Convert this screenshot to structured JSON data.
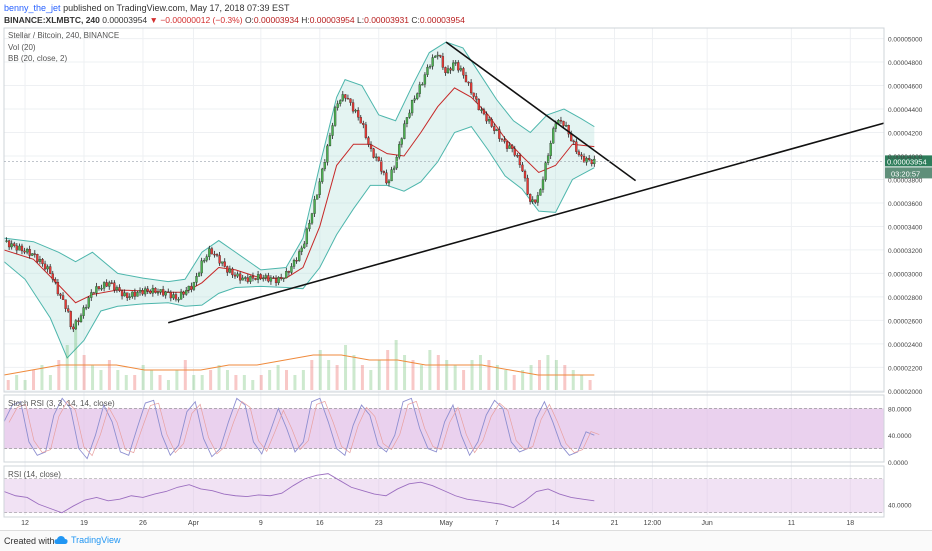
{
  "header": {
    "user": "benny_the_jet",
    "published": " published on TradingView.com, May 17, 2018 07:39 EST",
    "symbol": "BINANCE:XLMBTC, 240",
    "last": "0.00003954",
    "change": "▼ −0.00000012 (−0.3%)",
    "o_label": "O:",
    "o": "0.00003934",
    "h_label": "H:",
    "h": "0.00003954",
    "l_label": "L:",
    "l": "0.00003931",
    "c_label": "C:",
    "c": "0.00003954"
  },
  "legend": {
    "title": "Stellar / Bitcoin, 240, BINANCE",
    "vol": "Vol (20)",
    "bb": "BB (20, close, 2)",
    "stoch": "Stoch RSI (3, 3, 14, 14, close)",
    "rsi": "RSI (14, close)"
  },
  "price_tag": "0.00003954",
  "countdown": "03:20:57",
  "footer": {
    "created": "Created with",
    "brand": "TradingView"
  },
  "colors": {
    "up": "#4caf50",
    "down": "#e53935",
    "band": "#4db6ac",
    "band_fill": "#b2dfdb",
    "basis": "#c62828",
    "stoch_fill": "#e1bee7",
    "stoch_line": "#8e8fd0",
    "rsi_line": "#9c6fc0",
    "trend": "#111111",
    "price_tag": "#2e7d5b"
  },
  "chart_data": [
    {
      "type": "candlestick",
      "panel": "price",
      "title": "Stellar / Bitcoin, 240, BINANCE",
      "y_ticks": [
        "0.00002000",
        "0.00002200",
        "0.00002400",
        "0.00002600",
        "0.00002800",
        "0.00003000",
        "0.00003200",
        "0.00003400",
        "0.00003600",
        "0.00003800",
        "0.00004000",
        "0.00004200",
        "0.00004400",
        "0.00004600",
        "0.00004800",
        "0.00005000"
      ],
      "ylim": [
        1.99e-05,
        5.09e-05
      ],
      "x_ticks": [
        "12",
        "19",
        "26",
        "Apr",
        "9",
        "16",
        "23",
        "May",
        "7",
        "14",
        "21",
        "12:00",
        "Jun",
        "11",
        "18"
      ],
      "x_tick_days": [
        -19,
        -12,
        -5,
        1,
        9,
        16,
        23,
        31,
        37,
        44,
        51,
        55.5,
        62,
        72,
        79
      ],
      "xlim": [
        -21.5,
        83
      ],
      "price_path": [
        [
          -21.5,
          3.27e-05
        ],
        [
          -20,
          3.22e-05
        ],
        [
          -18,
          3.16e-05
        ],
        [
          -16,
          3.01e-05
        ],
        [
          -15,
          2.83e-05
        ],
        [
          -14,
          2.7e-05
        ],
        [
          -13.5,
          2.52e-05
        ],
        [
          -12.5,
          2.62e-05
        ],
        [
          -11,
          2.85e-05
        ],
        [
          -9,
          2.92e-05
        ],
        [
          -7,
          2.8e-05
        ],
        [
          -5,
          2.85e-05
        ],
        [
          -3.5,
          2.85e-05
        ],
        [
          -2,
          2.83e-05
        ],
        [
          -1,
          2.78e-05
        ],
        [
          0,
          2.85e-05
        ],
        [
          1,
          2.9e-05
        ],
        [
          2,
          3.09e-05
        ],
        [
          3,
          3.2e-05
        ],
        [
          4,
          3.12e-05
        ],
        [
          5,
          3.03e-05
        ],
        [
          6,
          2.98e-05
        ],
        [
          7,
          2.95e-05
        ],
        [
          9,
          2.97e-05
        ],
        [
          11,
          2.94e-05
        ],
        [
          12,
          2.99e-05
        ],
        [
          13,
          3.1e-05
        ],
        [
          14,
          3.23e-05
        ],
        [
          15,
          3.5e-05
        ],
        [
          16,
          3.78e-05
        ],
        [
          17,
          4.1e-05
        ],
        [
          18,
          4.45e-05
        ],
        [
          19,
          4.52e-05
        ],
        [
          20,
          4.4e-05
        ],
        [
          21,
          4.28e-05
        ],
        [
          22,
          4.05e-05
        ],
        [
          23,
          3.95e-05
        ],
        [
          24,
          3.76e-05
        ],
        [
          25,
          3.95e-05
        ],
        [
          26,
          4.25e-05
        ],
        [
          27,
          4.46e-05
        ],
        [
          28,
          4.6e-05
        ],
        [
          29,
          4.78e-05
        ],
        [
          30,
          4.88e-05
        ],
        [
          31,
          4.7e-05
        ],
        [
          32,
          4.8e-05
        ],
        [
          33,
          4.7e-05
        ],
        [
          34,
          4.55e-05
        ],
        [
          35,
          4.4e-05
        ],
        [
          36,
          4.3e-05
        ],
        [
          37,
          4.2e-05
        ],
        [
          38,
          4.1e-05
        ],
        [
          39,
          4.05e-05
        ],
        [
          40,
          3.9e-05
        ],
        [
          41,
          3.6e-05
        ],
        [
          42,
          3.65e-05
        ],
        [
          43,
          3.98e-05
        ],
        [
          44,
          4.3e-05
        ],
        [
          45,
          4.28e-05
        ],
        [
          46,
          4.12e-05
        ],
        [
          47,
          3.98e-05
        ],
        [
          48,
          3.96e-05
        ],
        [
          48.6,
          3.95e-05
        ]
      ],
      "bb_upper": [
        [
          -21.5,
          3.3e-05
        ],
        [
          -18,
          3.27e-05
        ],
        [
          -15,
          3.18e-05
        ],
        [
          -13,
          3.1e-05
        ],
        [
          -11,
          3.18e-05
        ],
        [
          -8,
          3e-05
        ],
        [
          -5,
          2.96e-05
        ],
        [
          -2,
          2.93e-05
        ],
        [
          0,
          2.95e-05
        ],
        [
          2,
          3.18e-05
        ],
        [
          4,
          3.28e-05
        ],
        [
          6,
          3.18e-05
        ],
        [
          9,
          3.03e-05
        ],
        [
          12,
          3.05e-05
        ],
        [
          14,
          3.3e-05
        ],
        [
          16,
          3.92e-05
        ],
        [
          18,
          4.5e-05
        ],
        [
          19,
          4.65e-05
        ],
        [
          21,
          4.6e-05
        ],
        [
          23,
          4.35e-05
        ],
        [
          25,
          4.3e-05
        ],
        [
          27,
          4.6e-05
        ],
        [
          29,
          4.88e-05
        ],
        [
          31,
          4.97e-05
        ],
        [
          33,
          4.92e-05
        ],
        [
          35,
          4.7e-05
        ],
        [
          37,
          4.48e-05
        ],
        [
          39,
          4.3e-05
        ],
        [
          41,
          4.2e-05
        ],
        [
          43,
          4.35e-05
        ],
        [
          45,
          4.4e-05
        ],
        [
          47,
          4.32e-05
        ],
        [
          48.6,
          4.25e-05
        ]
      ],
      "bb_lower": [
        [
          -21.5,
          3.1e-05
        ],
        [
          -19,
          2.95e-05
        ],
        [
          -16,
          2.62e-05
        ],
        [
          -14,
          2.28e-05
        ],
        [
          -12,
          2.43e-05
        ],
        [
          -10,
          2.68e-05
        ],
        [
          -8,
          2.72e-05
        ],
        [
          -5,
          2.74e-05
        ],
        [
          -2,
          2.75e-05
        ],
        [
          0,
          2.72e-05
        ],
        [
          2,
          2.73e-05
        ],
        [
          4,
          2.83e-05
        ],
        [
          6,
          2.88e-05
        ],
        [
          9,
          2.89e-05
        ],
        [
          12,
          2.88e-05
        ],
        [
          14,
          2.87e-05
        ],
        [
          16,
          3.05e-05
        ],
        [
          18,
          3.33e-05
        ],
        [
          20,
          3.55e-05
        ],
        [
          22,
          3.75e-05
        ],
        [
          24,
          3.75e-05
        ],
        [
          26,
          3.7e-05
        ],
        [
          28,
          3.78e-05
        ],
        [
          30,
          3.95e-05
        ],
        [
          32,
          4.2e-05
        ],
        [
          34,
          4.25e-05
        ],
        [
          36,
          4.05e-05
        ],
        [
          38,
          3.83e-05
        ],
        [
          40,
          3.72e-05
        ],
        [
          42,
          3.53e-05
        ],
        [
          44,
          3.52e-05
        ],
        [
          46,
          3.8e-05
        ],
        [
          48.6,
          3.9e-05
        ]
      ],
      "bb_basis": [
        [
          -21.5,
          3.2e-05
        ],
        [
          -18,
          3.12e-05
        ],
        [
          -15,
          2.9e-05
        ],
        [
          -13,
          2.75e-05
        ],
        [
          -11,
          2.82e-05
        ],
        [
          -8,
          2.86e-05
        ],
        [
          -5,
          2.85e-05
        ],
        [
          -2,
          2.84e-05
        ],
        [
          0,
          2.84e-05
        ],
        [
          2,
          2.92e-05
        ],
        [
          4,
          3.05e-05
        ],
        [
          6,
          3.03e-05
        ],
        [
          9,
          2.96e-05
        ],
        [
          12,
          2.96e-05
        ],
        [
          14,
          3.05e-05
        ],
        [
          16,
          3.4e-05
        ],
        [
          18,
          3.92e-05
        ],
        [
          20,
          4.1e-05
        ],
        [
          22,
          4.1e-05
        ],
        [
          24,
          4.02e-05
        ],
        [
          26,
          4e-05
        ],
        [
          28,
          4.2e-05
        ],
        [
          30,
          4.42e-05
        ],
        [
          32,
          4.58e-05
        ],
        [
          34,
          4.5e-05
        ],
        [
          36,
          4.35e-05
        ],
        [
          38,
          4.15e-05
        ],
        [
          40,
          4e-05
        ],
        [
          42,
          3.86e-05
        ],
        [
          44,
          3.92e-05
        ],
        [
          46,
          4.1e-05
        ],
        [
          48.6,
          4.08e-05
        ]
      ],
      "trendlines": [
        {
          "name": "support",
          "from": [
            -2,
            2.58e-05
          ],
          "to": [
            83,
            4.28e-05
          ]
        },
        {
          "name": "resistance",
          "from": [
            31,
            4.97e-05
          ],
          "to": [
            53.5,
            3.79e-05
          ]
        }
      ],
      "last_price": 3.954e-05
    },
    {
      "type": "bar",
      "panel": "volume",
      "title": "Vol (20)",
      "values": [
        2,
        3,
        2,
        4,
        5,
        3,
        6,
        9,
        12,
        7,
        5,
        4,
        6,
        4,
        3,
        3,
        5,
        4,
        3,
        2,
        4,
        6,
        3,
        3,
        4,
        5,
        4,
        3,
        3,
        2,
        3,
        4,
        5,
        4,
        3,
        4,
        6,
        8,
        6,
        5,
        9,
        7,
        5,
        4,
        6,
        8,
        10,
        7,
        6,
        5,
        8,
        7,
        6,
        5,
        4,
        6,
        7,
        6,
        5,
        4,
        3,
        4,
        5,
        6,
        7,
        6,
        5,
        4,
        3,
        2
      ],
      "ma": [
        3,
        4,
        5,
        5,
        5,
        4,
        4,
        4,
        5,
        5,
        6,
        7,
        7,
        6,
        6,
        5,
        5,
        5,
        4,
        3,
        3,
        3
      ]
    },
    {
      "type": "line",
      "panel": "stoch_rsi",
      "title": "Stoch RSI (3, 3, 14, 14, close)",
      "y_ticks": [
        "0.0000",
        "40.0000",
        "80.0000"
      ],
      "ylim": [
        0,
        100
      ],
      "bands": [
        20,
        80
      ],
      "values": [
        60,
        85,
        90,
        30,
        10,
        15,
        70,
        95,
        80,
        20,
        5,
        40,
        85,
        60,
        15,
        10,
        50,
        88,
        92,
        40,
        10,
        25,
        75,
        90,
        35,
        8,
        20,
        60,
        95,
        85,
        30,
        12,
        45,
        80,
        50,
        15,
        30,
        90,
        95,
        60,
        20,
        10,
        55,
        85,
        70,
        25,
        15,
        40,
        90,
        95,
        50,
        20,
        15,
        60,
        85,
        40,
        10,
        30,
        70,
        92,
        80,
        30,
        15,
        20,
        65,
        90,
        60,
        25,
        10,
        15,
        45,
        40
      ]
    },
    {
      "type": "line",
      "panel": "rsi",
      "title": "RSI (14, close)",
      "y_ticks": [
        "40.0000"
      ],
      "ylim": [
        25,
        85
      ],
      "bands": [
        30,
        70
      ],
      "values": [
        55,
        50,
        48,
        40,
        35,
        30,
        38,
        45,
        48,
        44,
        46,
        50,
        48,
        52,
        55,
        60,
        63,
        58,
        56,
        52,
        50,
        49,
        51,
        50,
        53,
        62,
        70,
        74,
        76,
        68,
        60,
        56,
        52,
        50,
        58,
        64,
        66,
        62,
        56,
        50,
        46,
        44,
        42,
        40,
        36,
        44,
        55,
        58,
        52,
        48,
        46,
        44
      ]
    }
  ]
}
